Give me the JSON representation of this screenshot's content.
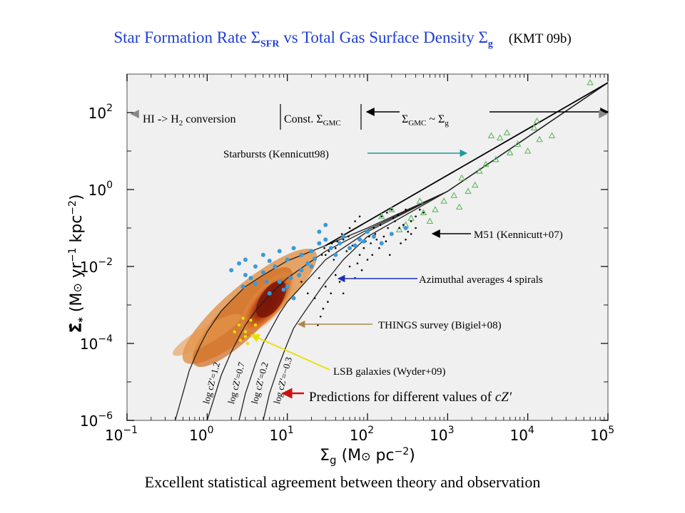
{
  "slide": {
    "title_main": "Star Formation Rate Σ",
    "title_sfr_sub": "SFR",
    "title_mid": " vs Total Gas Surface Density Σ",
    "title_g_sub": "g",
    "title_ref": "(KMT 09b)",
    "caption": "Excellent statistical agreement between theory and observation"
  },
  "colors": {
    "title_blue": "#1f3ed6",
    "starburst": "#5cb85c",
    "azimuthal": "#3a9ad9",
    "things_dark": "#8b1a0a",
    "things_light": "#e07a1f",
    "lsb": "#e8e000",
    "m51": "#000000",
    "teal_arrow": "#1a9aa0",
    "blue_arrow": "#1c2fb8",
    "brown_arrow": "#b0864a",
    "yellow_arrow": "#e8e000",
    "red_arrow": "#d01010"
  },
  "annotations": {
    "hi_h2": "HI -> H",
    "hi_h2_sub": "2",
    "hi_h2_tail": " conversion",
    "const_gmc": "Const. Σ",
    "const_gmc_sub": "GMC",
    "sigma_gmc": "Σ",
    "sigma_gmc_sub": "GMC",
    "sigma_tilde": " ~ Σ",
    "sigma_g_sub": "g",
    "starbursts": "Starbursts (Kennicutt98)",
    "m51": "M51 (Kennicutt+07)",
    "azimuthal": "Azimuthal averages 4 spirals",
    "things": "THINGS survey (Bigiel+08)",
    "lsb": "LSB galaxies (Wyder+09)",
    "predictions": "Predictions for different values of ",
    "predictions_var": "cZ′"
  },
  "chart_data": {
    "type": "scatter",
    "xscale": "log",
    "yscale": "log",
    "xlim": [
      0.1,
      100000
    ],
    "ylim": [
      1e-06,
      1000
    ],
    "xlabel": "Σg (M⊙ pc⁻²)",
    "ylabel": "Σ̇* (M⊙ yr⁻¹ kpc⁻²)",
    "xticks": [
      {
        "base": "10",
        "exp": "-1"
      },
      {
        "base": "10",
        "exp": "0"
      },
      {
        "base": "10",
        "exp": "1"
      },
      {
        "base": "10",
        "exp": "2"
      },
      {
        "base": "10",
        "exp": "3"
      },
      {
        "base": "10",
        "exp": "4"
      },
      {
        "base": "10",
        "exp": "5"
      }
    ],
    "yticks": [
      {
        "base": "10",
        "exp": "-6"
      },
      {
        "base": "10",
        "exp": "-4"
      },
      {
        "base": "10",
        "exp": "-2"
      },
      {
        "base": "10",
        "exp": "0"
      },
      {
        "base": "10",
        "exp": "2"
      }
    ],
    "curve_labels": [
      "log cZ′=1.2",
      "log cZ′=0.7",
      "log cZ′=0.2",
      "log cZ′=−0.3"
    ],
    "series": [
      {
        "name": "Starbursts (Kennicutt98)",
        "marker": "triangle",
        "color": "#5cb85c",
        "points": [
          [
            60000,
            600
          ],
          [
            12000,
            40
          ],
          [
            14000,
            20
          ],
          [
            10000,
            10
          ],
          [
            13000,
            60
          ],
          [
            5500,
            30
          ],
          [
            4500,
            22
          ],
          [
            3500,
            25
          ],
          [
            7500,
            15
          ],
          [
            6000,
            9
          ],
          [
            4000,
            6
          ],
          [
            2500,
            3
          ],
          [
            3000,
            4.5
          ],
          [
            1500,
            2
          ],
          [
            2200,
            1.3
          ],
          [
            1800,
            0.9
          ],
          [
            1200,
            0.7
          ],
          [
            900,
            0.5
          ],
          [
            1400,
            0.35
          ],
          [
            700,
            0.3
          ],
          [
            500,
            0.25
          ],
          [
            350,
            0.18
          ],
          [
            300,
            0.12
          ],
          [
            250,
            0.09
          ],
          [
            200,
            0.3
          ],
          [
            150,
            0.2
          ],
          [
            450,
            0.5
          ],
          [
            600,
            0.15
          ],
          [
            20000,
            25
          ]
        ]
      },
      {
        "name": "M51 (Kennicutt+07)",
        "marker": "dot",
        "color": "#000000",
        "points": [
          [
            30,
            0.02
          ],
          [
            40,
            0.03
          ],
          [
            50,
            0.05
          ],
          [
            60,
            0.1
          ],
          [
            70,
            0.15
          ],
          [
            80,
            0.2
          ],
          [
            100,
            0.08
          ],
          [
            120,
            0.1
          ],
          [
            150,
            0.2
          ],
          [
            200,
            0.3
          ],
          [
            250,
            0.1
          ],
          [
            300,
            0.05
          ],
          [
            350,
            0.15
          ],
          [
            400,
            0.2
          ],
          [
            20,
            0.01
          ],
          [
            25,
            0.005
          ],
          [
            30,
            0.003
          ],
          [
            35,
            0.002
          ],
          [
            40,
            0.006
          ],
          [
            45,
            0.004
          ],
          [
            50,
            0.002
          ],
          [
            60,
            0.01
          ],
          [
            70,
            0.005
          ],
          [
            80,
            0.02
          ],
          [
            90,
            0.03
          ],
          [
            100,
            0.015
          ],
          [
            110,
            0.04
          ],
          [
            130,
            0.05
          ],
          [
            140,
            0.03
          ],
          [
            160,
            0.06
          ],
          [
            180,
            0.1
          ],
          [
            220,
            0.15
          ],
          [
            15,
            0.004
          ],
          [
            18,
            0.002
          ],
          [
            22,
            0.0015
          ],
          [
            28,
            0.0008
          ],
          [
            32,
            0.0012
          ],
          [
            26,
            0.0005
          ],
          [
            24,
            0.0003
          ],
          [
            27,
            0.02
          ],
          [
            38,
            0.015
          ],
          [
            55,
            0.025
          ],
          [
            65,
            0.035
          ],
          [
            75,
            0.012
          ],
          [
            85,
            0.008
          ],
          [
            95,
            0.045
          ],
          [
            105,
            0.06
          ],
          [
            125,
            0.07
          ],
          [
            145,
            0.12
          ],
          [
            175,
            0.25
          ],
          [
            210,
            0.18
          ],
          [
            240,
            0.22
          ],
          [
            280,
            0.12
          ],
          [
            320,
            0.08
          ],
          [
            260,
            0.04
          ],
          [
            190,
            0.02
          ],
          [
            170,
            0.045
          ],
          [
            115,
            0.02
          ],
          [
            42,
            0.045
          ],
          [
            48,
            0.07
          ],
          [
            58,
            0.06
          ],
          [
            36,
            0.04
          ],
          [
            29,
            0.03
          ],
          [
            33,
            0.025
          ],
          [
            300,
            0.3
          ],
          [
            400,
            0.1
          ],
          [
            350,
            0.07
          ],
          [
            500,
            0.25
          ],
          [
            450,
            0.3
          ]
        ]
      },
      {
        "name": "Azimuthal averages 4 spirals",
        "marker": "dot",
        "color": "#3a9ad9",
        "points": [
          [
            2,
            0.008
          ],
          [
            2.5,
            0.012
          ],
          [
            3,
            0.006
          ],
          [
            3,
            0.015
          ],
          [
            4,
            0.01
          ],
          [
            5,
            0.007
          ],
          [
            5,
            0.02
          ],
          [
            6,
            0.014
          ],
          [
            7,
            0.01
          ],
          [
            8,
            0.025
          ],
          [
            10,
            0.015
          ],
          [
            12,
            0.03
          ],
          [
            15,
            0.02
          ],
          [
            20,
            0.025
          ],
          [
            25,
            0.04
          ],
          [
            30,
            0.05
          ],
          [
            40,
            0.02
          ],
          [
            50,
            0.06
          ],
          [
            60,
            0.03
          ],
          [
            80,
            0.05
          ],
          [
            100,
            0.08
          ],
          [
            150,
            0.04
          ],
          [
            200,
            0.07
          ],
          [
            300,
            0.1
          ],
          [
            25,
            0.08
          ],
          [
            30,
            0.12
          ],
          [
            20,
            0.01
          ],
          [
            15,
            0.008
          ],
          [
            8,
            0.004
          ],
          [
            10,
            0.003
          ],
          [
            12,
            0.0015
          ],
          [
            9,
            0.0025
          ],
          [
            6,
            0.002
          ],
          [
            4,
            0.0035
          ],
          [
            3.5,
            0.005
          ],
          [
            2.8,
            0.003
          ],
          [
            5.5,
            0.004
          ],
          [
            11,
            0.005
          ],
          [
            14,
            0.006
          ],
          [
            18,
            0.012
          ],
          [
            22,
            0.016
          ],
          [
            35,
            0.03
          ],
          [
            45,
            0.04
          ],
          [
            70,
            0.035
          ],
          [
            120,
            0.06
          ],
          [
            90,
            0.045
          ]
        ]
      },
      {
        "name": "LSB galaxies (Wyder+09)",
        "marker": "dot",
        "color": "#e8e000",
        "points": [
          [
            2.5,
            0.0003
          ],
          [
            3,
            0.0002
          ],
          [
            3.5,
            0.0004
          ],
          [
            3,
            0.00015
          ],
          [
            2.2,
            0.0002
          ],
          [
            4,
            0.0003
          ],
          [
            2.8,
            0.00045
          ],
          [
            3.2,
            0.0001
          ],
          [
            2.6,
            0.00012
          ]
        ]
      }
    ],
    "model_curves": [
      {
        "label": "log cZ′=1.2",
        "x": [
          0.4,
          0.6,
          0.8,
          1,
          1.5,
          2,
          3,
          5,
          10,
          30,
          100,
          1000,
          100000
        ],
        "y": [
          1e-06,
          2e-05,
          8e-05,
          0.0002,
          0.0007,
          0.0013,
          0.003,
          0.006,
          0.014,
          0.035,
          0.1,
          0.9,
          600
        ]
      },
      {
        "label": "log cZ′=0.7",
        "x": [
          1,
          1.5,
          2,
          2.5,
          3,
          4,
          6,
          10,
          30,
          100,
          1000,
          100000
        ],
        "y": [
          1e-06,
          1.5e-05,
          6e-05,
          0.00015,
          0.0003,
          0.0007,
          0.0018,
          0.005,
          0.025,
          0.09,
          0.9,
          600
        ]
      },
      {
        "label": "log cZ′=0.2",
        "x": [
          2.5,
          3,
          4,
          5,
          6,
          8,
          10,
          15,
          30,
          100,
          1000,
          100000
        ],
        "y": [
          1e-06,
          5e-06,
          3e-05,
          0.0001,
          0.0002,
          0.0006,
          0.0012,
          0.003,
          0.015,
          0.08,
          0.9,
          600
        ]
      },
      {
        "label": "log cZ′=−0.3",
        "x": [
          5,
          6,
          8,
          10,
          12,
          15,
          20,
          30,
          50,
          100,
          1000,
          100000
        ],
        "y": [
          1e-06,
          5e-06,
          3e-05,
          0.0001,
          0.00025,
          0.0005,
          0.0012,
          0.004,
          0.015,
          0.06,
          0.9,
          600
        ]
      }
    ],
    "reference_line": {
      "x": [
        30,
        100000
      ],
      "y": [
        0.035,
        600
      ]
    },
    "things_density": {
      "color_inner": "#8b1a0a",
      "color_outer": "#e07a1f"
    },
    "grid": false,
    "legend": "none"
  }
}
